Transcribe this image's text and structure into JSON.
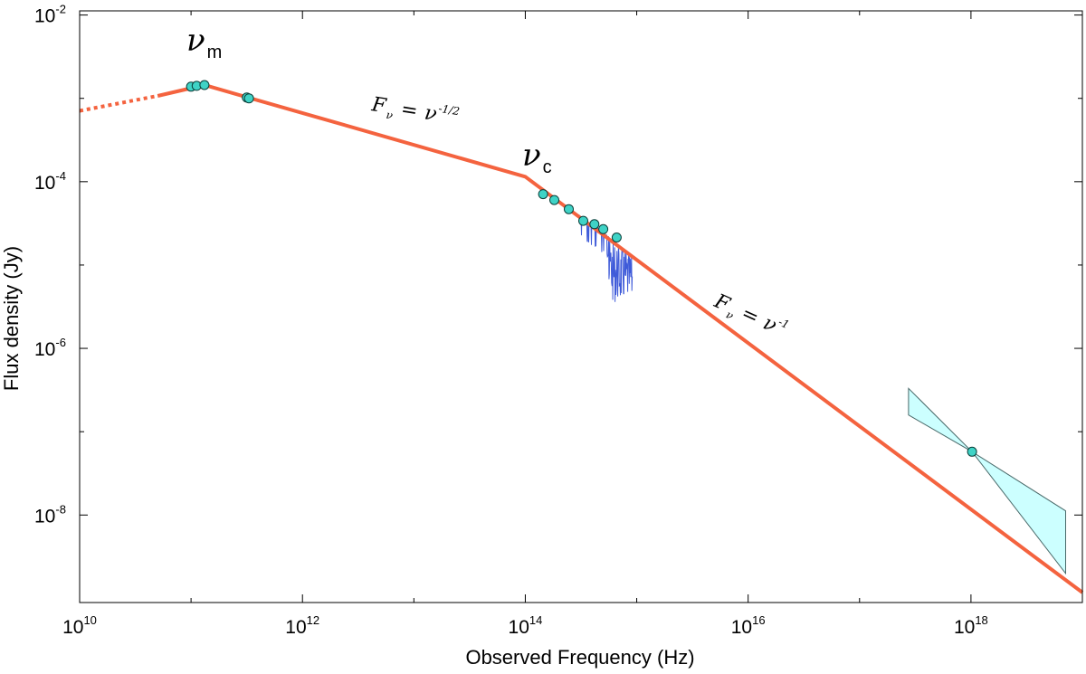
{
  "chart_data": {
    "type": "line",
    "title": "",
    "xlabel": "Observed Frequency (Hz)",
    "ylabel": "Flux density (Jy)",
    "x_scale": "log",
    "y_scale": "log",
    "xlim_log10": [
      10,
      19
    ],
    "ylim_log10": [
      -9.05,
      -1.95
    ],
    "x_ticks": [
      {
        "base": "10",
        "exp": "10",
        "value": 10
      },
      {
        "base": "10",
        "exp": "12",
        "value": 12
      },
      {
        "base": "10",
        "exp": "14",
        "value": 14
      },
      {
        "base": "10",
        "exp": "16",
        "value": 16
      },
      {
        "base": "10",
        "exp": "18",
        "value": 18
      }
    ],
    "x_minor_ticks": [
      11,
      13,
      15,
      17
    ],
    "y_ticks": [
      {
        "base": "10",
        "exp": "-2",
        "value": -2
      },
      {
        "base": "10",
        "exp": "-4",
        "value": -4
      },
      {
        "base": "10",
        "exp": "-6",
        "value": -6
      },
      {
        "base": "10",
        "exp": "-8",
        "value": -8
      }
    ],
    "y_minor_ticks": [
      -3,
      -5,
      -7
    ],
    "model": {
      "color": "#F4633F",
      "dotted_segment": [
        [
          10.0,
          -3.15
        ],
        [
          10.7,
          -2.97
        ]
      ],
      "solid_segment": [
        [
          10.7,
          -2.97
        ],
        [
          11.12,
          -2.84
        ],
        [
          14.0,
          -3.94
        ],
        [
          19.0,
          -8.93
        ]
      ]
    },
    "observations": {
      "color": "#3FD3C6",
      "points_log10": [
        [
          11.0,
          -2.86
        ],
        [
          11.05,
          -2.85
        ],
        [
          11.12,
          -2.84
        ],
        [
          11.5,
          -2.99
        ],
        [
          11.52,
          -3.0
        ],
        [
          14.16,
          -4.15
        ],
        [
          14.26,
          -4.22
        ],
        [
          14.39,
          -4.33
        ],
        [
          14.52,
          -4.47
        ],
        [
          14.62,
          -4.51
        ],
        [
          14.7,
          -4.57
        ],
        [
          14.82,
          -4.67
        ],
        [
          18.01,
          -7.24
        ]
      ]
    },
    "spectrum": {
      "color": "#3F5BD9",
      "x_range_log10": [
        14.48,
        14.96
      ],
      "trend_log10": [
        [
          14.48,
          -4.4
        ],
        [
          14.96,
          -4.88
        ]
      ],
      "bottom_log10": -5.45
    },
    "xray_bowtie": {
      "fill": "#CCFFFF",
      "stroke": "#4A6A6A",
      "polygon_log10": [
        [
          17.44,
          -6.48
        ],
        [
          18.01,
          -7.24
        ],
        [
          18.85,
          -7.95
        ],
        [
          18.85,
          -8.7
        ],
        [
          18.01,
          -7.24
        ],
        [
          17.44,
          -6.8
        ]
      ]
    },
    "annotations": [
      {
        "type": "break",
        "symbol": "ν",
        "subscript": "m"
      },
      {
        "type": "break",
        "symbol": "ν",
        "subscript": "c"
      },
      {
        "type": "slope",
        "lhs": "F",
        "lhs_sub": "ν",
        "eq": "=",
        "rhs": "ν",
        "rhs_exp": "-1/2"
      },
      {
        "type": "slope",
        "lhs": "F",
        "lhs_sub": "ν",
        "eq": "=",
        "rhs": "ν",
        "rhs_exp": "-1"
      }
    ]
  }
}
